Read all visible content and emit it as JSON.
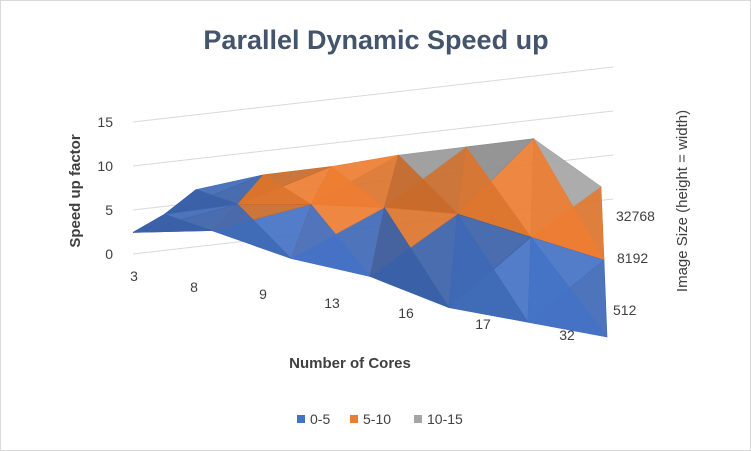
{
  "chart_data": {
    "type": "surface",
    "title": "Parallel Dynamic Speed up",
    "xlabel": "Number of Cores",
    "ylabel": "Speed up factor",
    "zlabel": "Image Size (height = width)",
    "x_categories": [
      "3",
      "8",
      "9",
      "13",
      "16",
      "17",
      "32"
    ],
    "z_categories": [
      "512",
      "8192",
      "32768"
    ],
    "ylim": [
      0,
      15
    ],
    "y_ticks": [
      "0",
      "5",
      "10",
      "15"
    ],
    "values": [
      [
        1.0,
        3.5,
        1.5,
        1.0,
        -1.5,
        -1.5,
        -1.5
      ],
      [
        2.0,
        5.0,
        6.5,
        7.5,
        8.0,
        6.0,
        4.0
      ],
      [
        4.0,
        7.0,
        9.0,
        11.5,
        13.5,
        15.5,
        9.0
      ]
    ],
    "grid": true,
    "legend": {
      "position": "bottom",
      "items": [
        {
          "label": "0-5",
          "color": "#4472c4"
        },
        {
          "label": "5-10",
          "color": "#ed7d31"
        },
        {
          "label": "10-15",
          "color": "#a5a5a5"
        }
      ]
    }
  }
}
